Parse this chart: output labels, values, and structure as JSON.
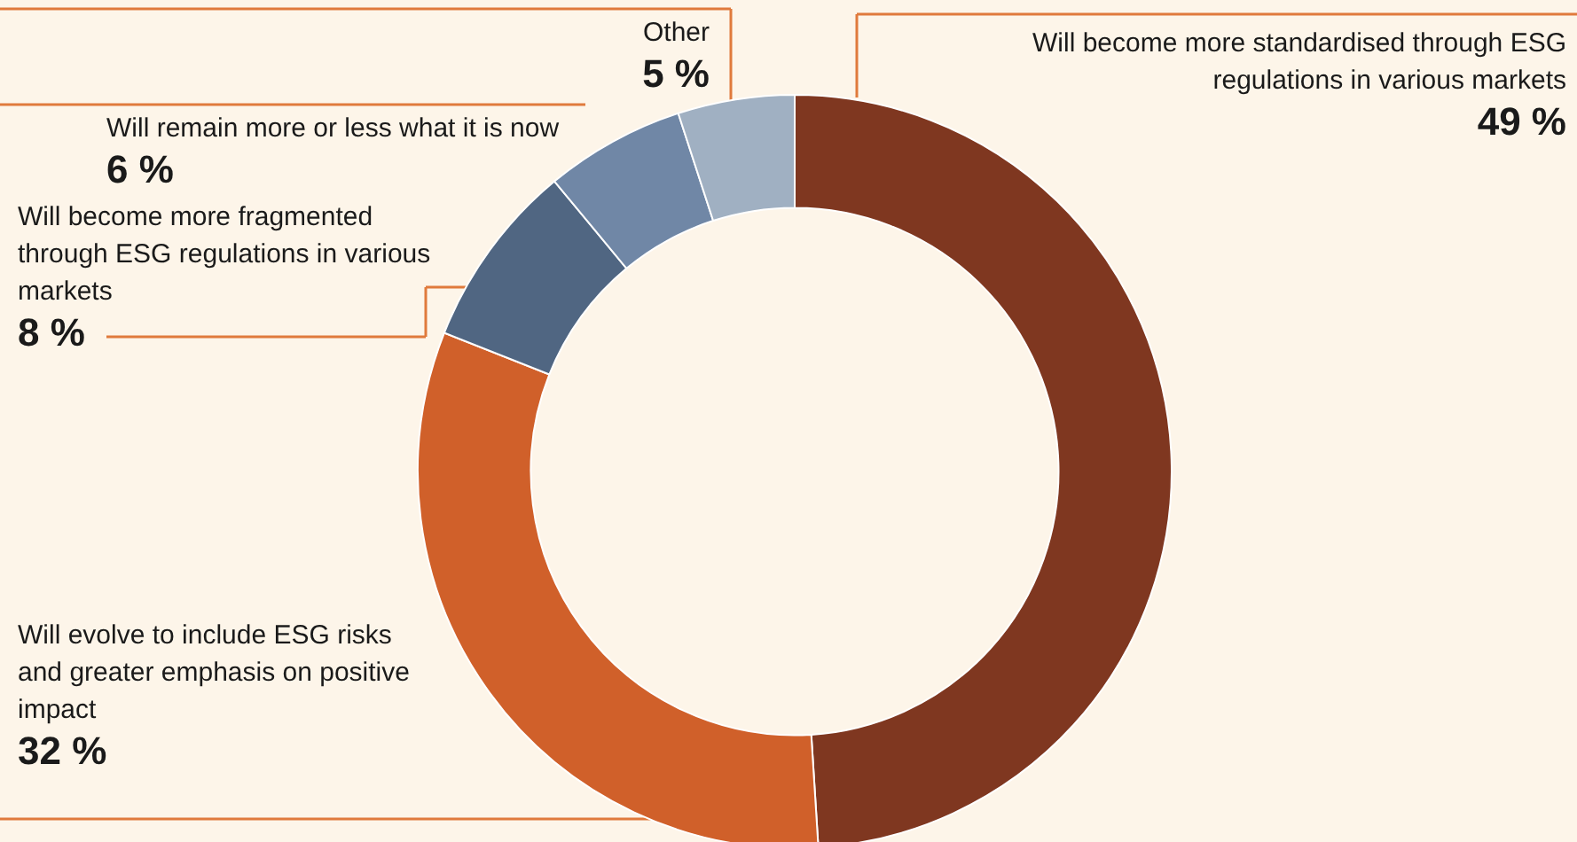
{
  "chart_data": {
    "type": "donut",
    "categories": [
      "Will become more standardised through ESG regulations in various markets",
      "Will evolve to include ESG risks and greater emphasis on positive impact",
      "Will become more fragmented through ESG regulations in various markets",
      "Will remain more or less what it is now",
      "Other"
    ],
    "values": [
      49,
      32,
      8,
      6,
      5
    ],
    "colors": [
      "#7f3720",
      "#d0602a",
      "#506682",
      "#7087a6",
      "#a0b0c2"
    ],
    "value_labels": [
      "49 %",
      "32 %",
      "8 %",
      "6 %",
      "5 %"
    ]
  }
}
